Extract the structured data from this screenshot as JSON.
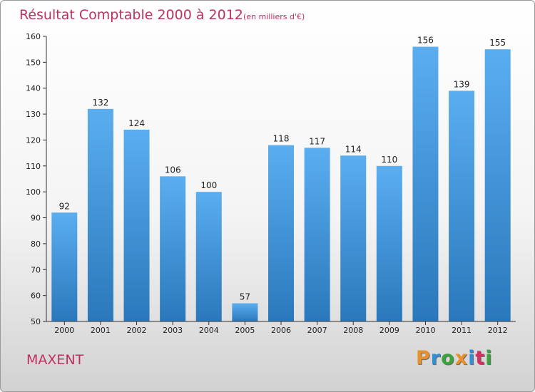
{
  "title": "Résultat Comptable 2000 à 2012",
  "subtitle": "(en milliers d'€)",
  "town": "MAXENT",
  "brand": {
    "letters": [
      "P",
      "r",
      "o",
      "x",
      "i",
      "t",
      "i"
    ],
    "colors": [
      "#e8902a",
      "#2f8fd8",
      "#3aa53a",
      "#e8902a",
      "#2f8fd8",
      "#d0305e",
      "#3aa53a"
    ]
  },
  "colors": {
    "bar_top": "#5aaef0",
    "bar_bottom": "#2a78bb",
    "axis": "#333333",
    "title": "#c0305e"
  },
  "chart_data": {
    "type": "bar",
    "categories": [
      "2000",
      "2001",
      "2002",
      "2003",
      "2004",
      "2005",
      "2006",
      "2007",
      "2008",
      "2009",
      "2010",
      "2011",
      "2012"
    ],
    "values": [
      92,
      132,
      124,
      106,
      100,
      57,
      118,
      117,
      114,
      110,
      156,
      139,
      155
    ],
    "ylim": [
      50,
      160
    ],
    "yticks": [
      50,
      60,
      70,
      80,
      90,
      100,
      110,
      120,
      130,
      140,
      150,
      160
    ],
    "grid": false
  }
}
